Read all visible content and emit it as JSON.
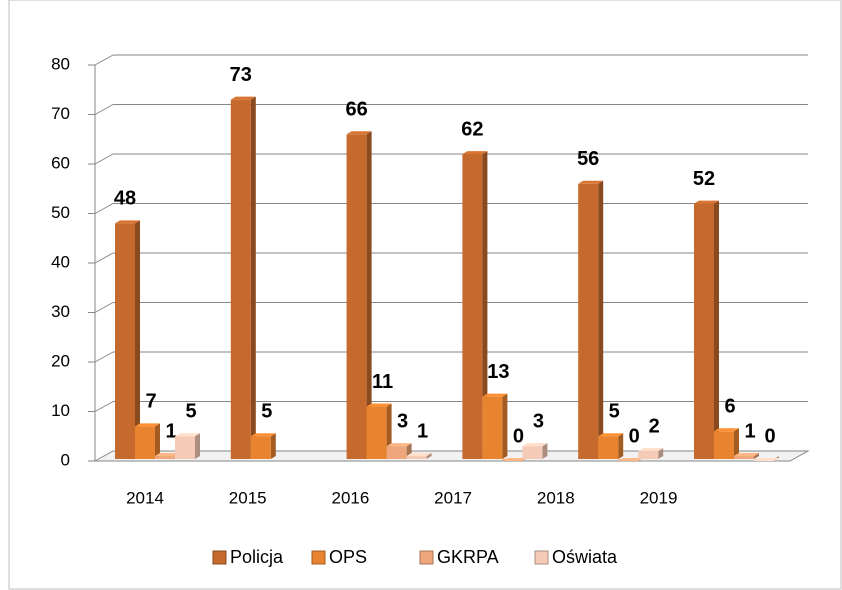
{
  "chart_data": {
    "type": "bar",
    "categories": [
      "2014",
      "2015",
      "2016",
      "2017",
      "2018",
      "2019"
    ],
    "series": [
      {
        "name": "Policja",
        "color": "#c5692d",
        "values": [
          48,
          73,
          66,
          62,
          56,
          52
        ]
      },
      {
        "name": "OPS",
        "color": "#e8842f",
        "values": [
          7,
          5,
          11,
          13,
          5,
          6
        ]
      },
      {
        "name": "GKRPA",
        "color": "#efa67a",
        "values": [
          1,
          null,
          3,
          0,
          0,
          1
        ]
      },
      {
        "name": "Oświata",
        "color": "#f5cbb8",
        "values": [
          5,
          null,
          1,
          3,
          2,
          0
        ]
      }
    ],
    "ylim": [
      0,
      80
    ],
    "yticks": [
      0,
      10,
      20,
      30,
      40,
      50,
      60,
      70,
      80
    ],
    "grid": true,
    "legend": "bottom"
  }
}
